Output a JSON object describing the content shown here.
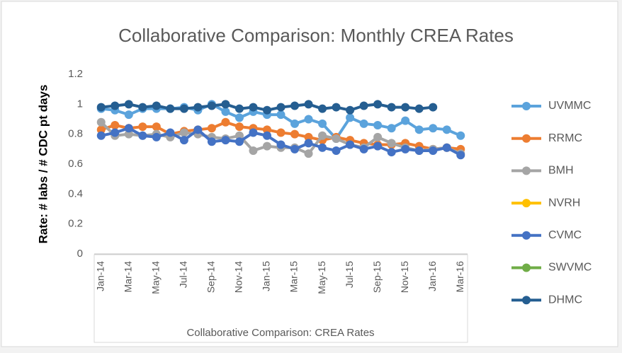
{
  "chart_data": {
    "type": "line",
    "title": "Collaborative Comparison: Monthly CREA Rates",
    "x_label": "Collaborative Comparison: CREA Rates",
    "y_label": "Rate: # labs / # CDC pt days",
    "categories": [
      "Jan-14",
      null,
      "Mar-14",
      null,
      "May-14",
      null,
      "Jul-14",
      null,
      "Sep-14",
      null,
      "Nov-14",
      null,
      "Jan-15",
      null,
      "Mar-15",
      null,
      "May-15",
      null,
      "Jul-15",
      null,
      "Sep-15",
      null,
      "Nov-15",
      null,
      "Jan-16",
      null,
      "Mar-16"
    ],
    "series": [
      {
        "name": "UVMMC",
        "color": "#5ba3dc",
        "values": [
          0.97,
          0.96,
          0.93,
          0.97,
          0.97,
          0.97,
          0.98,
          0.96,
          1.0,
          0.95,
          0.91,
          0.95,
          0.93,
          0.93,
          0.87,
          0.9,
          0.87,
          0.77,
          0.91,
          0.87,
          0.86,
          0.84,
          0.89,
          0.83,
          0.84,
          0.83,
          0.79
        ]
      },
      {
        "name": "RRMC",
        "color": "#ed7d31",
        "values": [
          0.83,
          0.86,
          0.84,
          0.85,
          0.85,
          0.8,
          0.82,
          0.83,
          0.84,
          0.88,
          0.85,
          0.84,
          0.83,
          0.81,
          0.8,
          0.78,
          0.76,
          0.78,
          0.76,
          0.74,
          0.73,
          0.73,
          0.74,
          0.72,
          0.7,
          0.71,
          0.7
        ]
      },
      {
        "name": "BMH",
        "color": "#a5a5a5",
        "values": [
          0.88,
          0.79,
          0.8,
          0.79,
          0.8,
          0.78,
          0.81,
          0.8,
          0.78,
          0.77,
          0.79,
          0.69,
          0.72,
          0.71,
          0.71,
          0.67,
          0.79,
          0.77,
          0.73,
          0.71,
          0.78,
          0.74,
          0.71,
          0.69,
          0.7,
          0.71,
          0.67
        ]
      },
      {
        "name": "NVRH",
        "color": "#ffc000",
        "values": [
          null,
          null,
          null,
          null,
          null,
          null,
          null,
          null,
          null,
          null,
          null,
          null,
          null,
          null,
          null,
          null,
          null,
          null,
          null,
          null,
          null,
          null,
          null,
          null,
          null,
          null,
          null
        ]
      },
      {
        "name": "CVMC",
        "color": "#4472c4",
        "values": [
          0.79,
          0.81,
          0.84,
          0.79,
          0.78,
          0.81,
          0.76,
          0.83,
          0.75,
          0.76,
          0.75,
          0.81,
          0.79,
          0.73,
          0.7,
          0.74,
          0.71,
          0.69,
          0.73,
          0.7,
          0.72,
          0.68,
          0.7,
          0.69,
          0.69,
          0.71,
          0.66
        ]
      },
      {
        "name": "SWVMC",
        "color": "#70ad47",
        "values": [
          null,
          null,
          null,
          null,
          null,
          null,
          null,
          null,
          null,
          null,
          null,
          null,
          null,
          null,
          null,
          null,
          null,
          null,
          null,
          null,
          null,
          null,
          null,
          null,
          null,
          null,
          null
        ]
      },
      {
        "name": "DHMC",
        "color": "#255e91",
        "values": [
          0.98,
          0.99,
          1.0,
          0.98,
          0.99,
          0.97,
          0.97,
          0.98,
          0.99,
          1.0,
          0.97,
          0.98,
          0.96,
          0.98,
          0.99,
          1.0,
          0.97,
          0.98,
          0.96,
          0.99,
          1.0,
          0.98,
          0.98,
          0.97,
          0.98,
          null,
          null
        ]
      }
    ],
    "ylim": [
      0,
      1.2
    ],
    "yticks": [
      0,
      0.2,
      0.4,
      0.6,
      0.8,
      1,
      1.2
    ],
    "grid": false,
    "legend": "right"
  }
}
